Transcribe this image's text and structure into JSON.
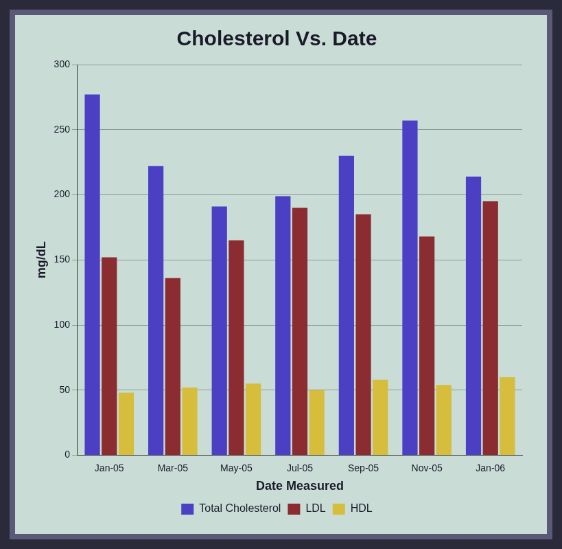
{
  "chart_data": {
    "type": "bar",
    "title": "Cholesterol Vs. Date",
    "x_label": "Date Measured",
    "y_label": "mg/dL",
    "categories": [
      "Jan-05",
      "Mar-05",
      "May-05",
      "Jul-05",
      "Sep-05",
      "Nov-05",
      "Jan-06"
    ],
    "series": [
      {
        "name": "Total Cholesterol",
        "color": "#4b3fc4",
        "values": [
          277,
          222,
          191,
          199,
          230,
          257,
          214
        ]
      },
      {
        "name": "LDL",
        "color": "#8a2c30",
        "values": [
          152,
          136,
          165,
          190,
          185,
          168,
          195
        ]
      },
      {
        "name": "HDL",
        "color": "#d6bd3c",
        "values": [
          48,
          52,
          55,
          50,
          58,
          54,
          60
        ]
      }
    ],
    "ylim": [
      0,
      300
    ],
    "yticks": [
      0,
      50,
      100,
      150,
      200,
      250,
      300
    ],
    "grid": true,
    "legend": "bottom"
  }
}
